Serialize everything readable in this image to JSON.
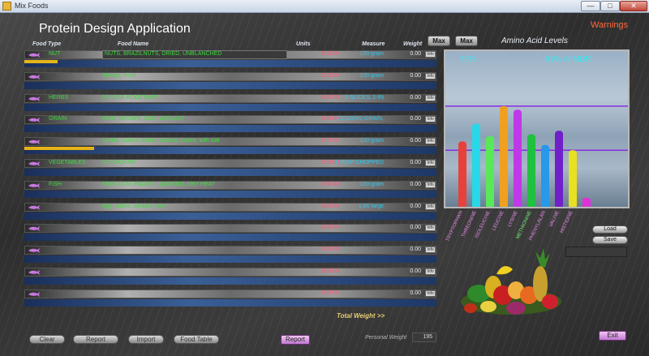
{
  "window": {
    "title": "Mix Foods",
    "buttons": {
      "minimize": "—",
      "maximize": "□",
      "close": "✕"
    }
  },
  "app_title": "Protein Design Application",
  "warnings_label": "Warnings",
  "columns": {
    "food_type": "Food Type",
    "food_name": "Food Name",
    "units": "Units",
    "measure": "Measure",
    "weight": "Weight"
  },
  "max_buttons": [
    "Max",
    "Max"
  ],
  "amino_title": "Amino Acid Levels",
  "rows": [
    {
      "type": "NUT",
      "name": "NUTS, BRAZILNUTS, DRIED, UNBLANCHED",
      "units": "0.3500",
      "measure": "100 gram",
      "weight": "0.00",
      "level": 0.08,
      "boxed": true
    },
    {
      "type": "",
      "name": "Shrimp, fresh",
      "units": "0.0000",
      "measure": "100 gram",
      "weight": "0.00",
      "level": 0
    },
    {
      "type": "HERBS",
      "name": "GINGER ROOT RAW",
      "units": "0.0000",
      "measure": "5 SLICES, 1-IN",
      "weight": "0.00",
      "level": 0
    },
    {
      "type": "GRAIN",
      "name": "RICE, BROWN, CKD, W/OSALT",
      "units": "0.0000",
      "measure": "1 C LONG GRAIN,",
      "weight": "0.00",
      "level": 0
    },
    {
      "type": "",
      "name": "Lentils, mature seeds, cooked, boiled, with salt",
      "units": "0.7500",
      "measure": "100 gram",
      "weight": "0.00",
      "level": 0.17
    },
    {
      "type": "VEGETABLES",
      "name": "ONION,RAW",
      "units": "0.0000",
      "measure": "1 TBSP CHOPPED",
      "weight": "0.00",
      "level": 0
    },
    {
      "type": "FISH",
      "name": "FISH, COD, PACIFIC, COOKED, DRY HEAT",
      "units": "0.0000",
      "measure": "100 gram",
      "weight": "0.00",
      "level": 0
    },
    {
      "type": "",
      "name": "Egg, whole, cooked, fried",
      "units": "0.0000",
      "measure": "1.00 large",
      "weight": "0.00",
      "level": 0
    },
    {
      "type": "",
      "name": "",
      "units": "0.0000",
      "measure": "",
      "weight": "0.00",
      "level": 0
    },
    {
      "type": "",
      "name": "",
      "units": "0.0000",
      "measure": "",
      "weight": "0.00",
      "level": 0
    },
    {
      "type": "",
      "name": "",
      "units": "0.0000",
      "measure": "",
      "weight": "0.00",
      "level": 0
    },
    {
      "type": "",
      "name": "",
      "units": "0.0000",
      "measure": "",
      "weight": "0.00",
      "level": 0
    }
  ],
  "info_label": "Info",
  "chart_data": {
    "type": "bar",
    "title": "Amino Acid Levels",
    "left_value": "77%",
    "right_value": "91% of MDR",
    "categories": [
      "TRYPTOPHAN",
      "THREONINE",
      "ISOLEUCINE",
      "LEUCINE",
      "LYSINE",
      "METHIONINE",
      "PHENYLALAN",
      "VALINE",
      "HISTIDINE"
    ],
    "values": [
      0.38,
      0.48,
      0.41,
      0.58,
      0.56,
      0.42,
      0.36,
      0.44,
      0.33
    ],
    "ylim": [
      0,
      0.8
    ],
    "reference_lines": [
      0.58,
      0.33
    ],
    "reference_color": "#8a2be2",
    "colors": [
      "#e8403a",
      "#28d8e8",
      "#58e858",
      "#f0a020",
      "#c038e8",
      "#20c040",
      "#2898e8",
      "#7020c8",
      "#e8e020"
    ],
    "extra_bar": {
      "color": "#e030d8",
      "value": 0.06
    },
    "label_colors": [
      "#f090f0",
      "#f090f0",
      "#f090f0",
      "#f090f0",
      "#f090f0",
      "#70f070",
      "#f090f0",
      "#f090f0",
      "#f090f0"
    ]
  },
  "load_label": "Load",
  "save_label": "Save",
  "total_weight_label": "Total Weight >>",
  "bottom_buttons": {
    "clear": "Clear",
    "report": "Report",
    "import": "Import",
    "food_table": "Food Table"
  },
  "report_button": "Report",
  "personal_weight_label": "Personal Weight",
  "personal_weight_value": "195",
  "exit_label": "Exit"
}
